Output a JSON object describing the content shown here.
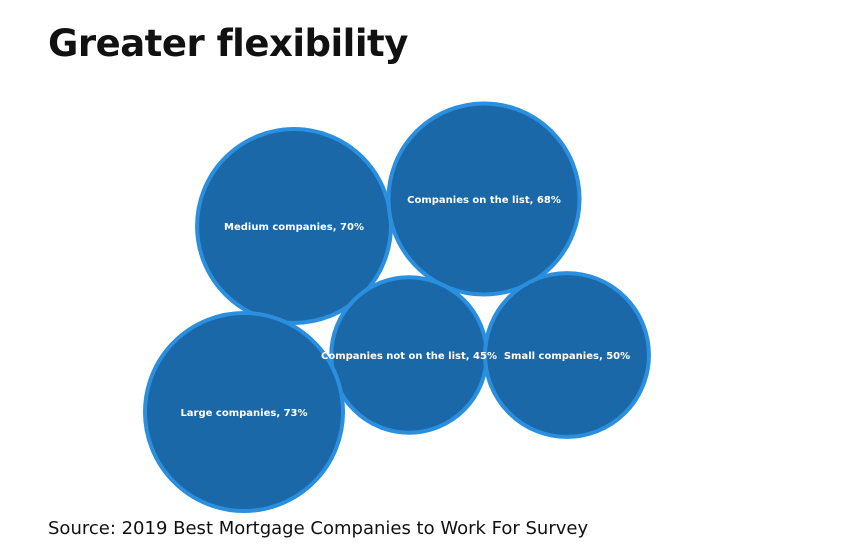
{
  "title": "Greater flexibility",
  "source": "Source: 2019 Best Mortgage Companies to Work For Survey",
  "colors": {
    "bubble_fill": "#1a68a8",
    "bubble_stroke": "#2b8fdf",
    "label": "#ffffff",
    "text": "#111111"
  },
  "chart_data": {
    "type": "bubble",
    "title": "Greater flexibility",
    "value_unit": "%",
    "series": [
      {
        "bubbles": [
          {
            "label": "Medium companies, 70%",
            "category": "Medium companies",
            "value": 70
          },
          {
            "label": "Companies on the list, 68%",
            "category": "Companies on the list",
            "value": 68
          },
          {
            "label": "Companies not on the list, 45%",
            "category": "Companies not on the list",
            "value": 45
          },
          {
            "label": "Small companies, 50%",
            "category": "Small companies",
            "value": 50
          },
          {
            "label": "Large companies, 73%",
            "category": "Large companies",
            "value": 73
          }
        ]
      }
    ]
  }
}
